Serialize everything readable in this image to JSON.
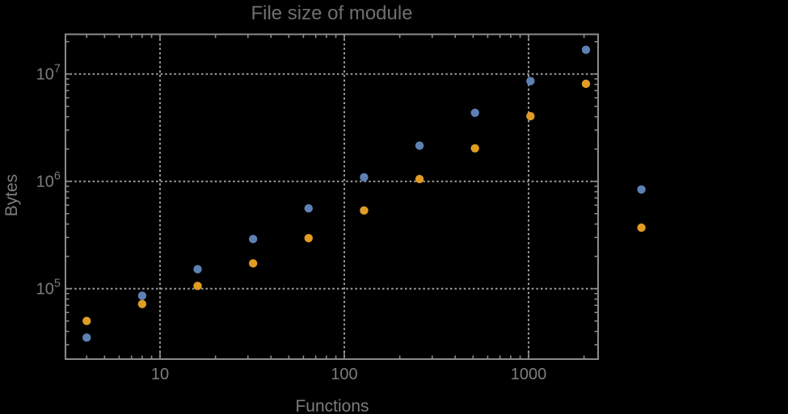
{
  "colors": {
    "background": "#000000",
    "frame": "#8a8a8a",
    "grid": "#a0a0a0",
    "tick_text": "#7d7d7d",
    "title_text": "#6f6f6f",
    "axis_label_text": "#7d7d7d"
  },
  "chart_data": {
    "type": "scatter",
    "title": "File size of module",
    "xlabel": "Functions",
    "ylabel": "Bytes",
    "x_scale": "log",
    "y_scale": "log",
    "grid": "dotted",
    "legend": "none",
    "x_range_visible": [
      3.1,
      2380
    ],
    "y_range_visible": [
      22000,
      23500000
    ],
    "x": [
      4,
      8,
      16,
      32,
      64,
      128,
      256,
      512,
      1024,
      2048,
      4096
    ],
    "series": [
      {
        "name": "series-1-blue",
        "color": "#5E81B5",
        "values": [
          35000,
          86000,
          152000,
          290000,
          560000,
          1090000,
          2150000,
          4350000,
          8600000,
          16800000,
          840000
        ]
      },
      {
        "name": "series-2-orange",
        "color": "#E19C24",
        "values": [
          50000,
          72000,
          106000,
          172000,
          296000,
          535000,
          1050000,
          2030000,
          4050000,
          8100000,
          370000
        ]
      }
    ],
    "x_tick_labels": [
      {
        "value": 10,
        "label": "10"
      },
      {
        "value": 100,
        "label": "100"
      },
      {
        "value": 1000,
        "label": "1000"
      }
    ],
    "y_tick_labels": [
      {
        "value": 100000,
        "base": "10",
        "exp": "5"
      },
      {
        "value": 1000000,
        "base": "10",
        "exp": "6"
      },
      {
        "value": 10000000,
        "base": "10",
        "exp": "7"
      }
    ]
  }
}
